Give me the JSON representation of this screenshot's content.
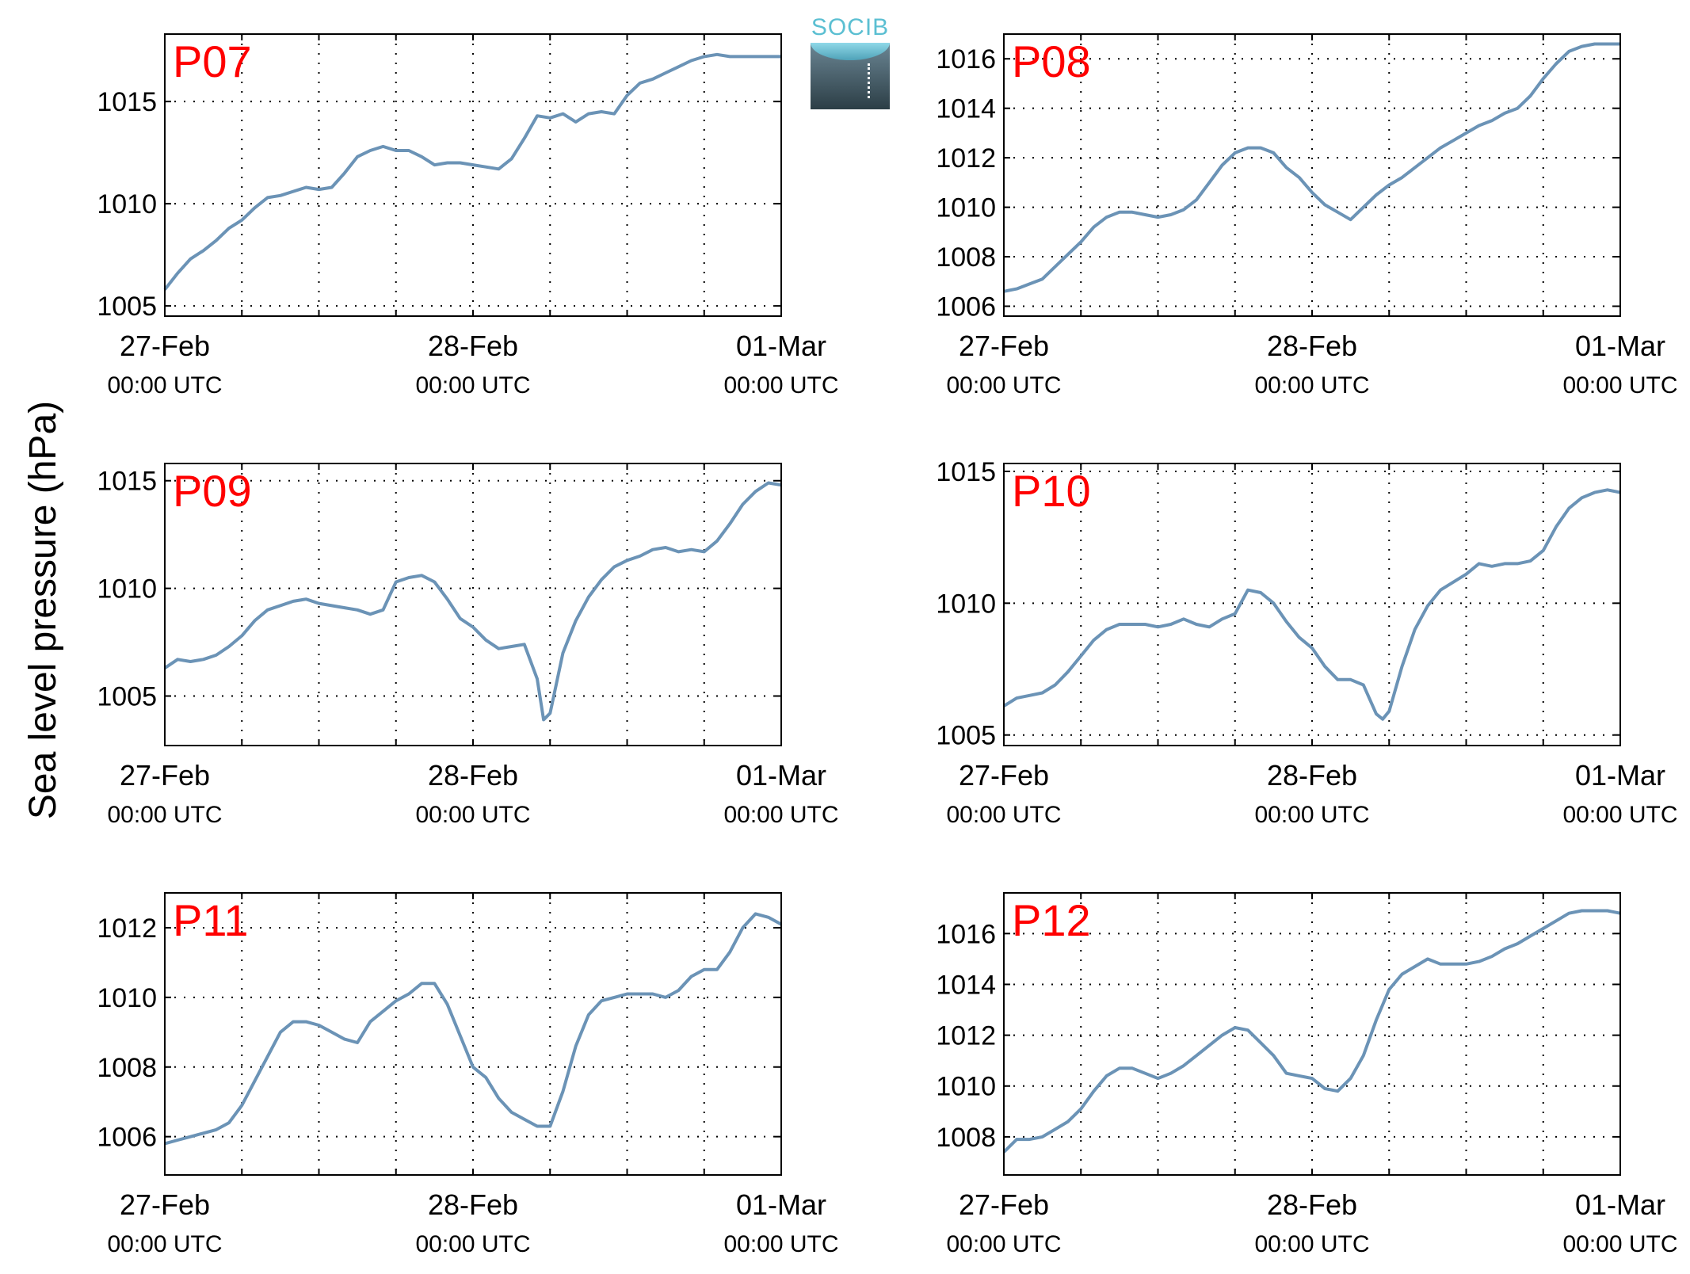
{
  "figure": {
    "ylabel": "Sea level pressure (hPa)",
    "logo_text": "SOCIB"
  },
  "colors": {
    "line": "#6b93b6",
    "panel_label": "#ff0000",
    "axis": "#000000",
    "grid": "#000000"
  },
  "chart_data": [
    {
      "type": "line",
      "panel_label": "P07",
      "ylim": [
        1004.5,
        1018.3
      ],
      "yticks": [
        "1005",
        "1010",
        "1015"
      ],
      "yticks_values": [
        1005,
        1010,
        1015
      ],
      "xlim": [
        0,
        48
      ],
      "xticks": [
        {
          "x": 0,
          "date": "27-Feb",
          "time": "00:00 UTC"
        },
        {
          "x": 24,
          "date": "28-Feb",
          "time": "00:00 UTC"
        },
        {
          "x": 48,
          "date": "01-Mar",
          "time": "00:00 UTC"
        }
      ],
      "xgrid": [
        6,
        12,
        18,
        30,
        36,
        42
      ],
      "grid": true,
      "series": [
        {
          "x": [
            0,
            1,
            2,
            3,
            4,
            5,
            6,
            7,
            8,
            9,
            10,
            11,
            12,
            13,
            14,
            15,
            16,
            17,
            18,
            19,
            20,
            21,
            22,
            23,
            24,
            25,
            26,
            27,
            28,
            29,
            30,
            31,
            32,
            33,
            34,
            35,
            36,
            37,
            38,
            39,
            40,
            41,
            42,
            43,
            44,
            45,
            46,
            47,
            48
          ],
          "y": [
            1005.8,
            1006.6,
            1007.3,
            1007.7,
            1008.2,
            1008.8,
            1009.2,
            1009.8,
            1010.3,
            1010.4,
            1010.6,
            1010.8,
            1010.7,
            1010.8,
            1011.5,
            1012.3,
            1012.6,
            1012.8,
            1012.6,
            1012.6,
            1012.3,
            1011.9,
            1012.0,
            1012.0,
            1011.9,
            1011.8,
            1011.7,
            1012.2,
            1013.2,
            1014.3,
            1014.2,
            1014.4,
            1014.0,
            1014.4,
            1014.5,
            1014.4,
            1015.3,
            1015.9,
            1016.1,
            1016.4,
            1016.7,
            1017.0,
            1017.2,
            1017.3,
            1017.2,
            1017.2,
            1017.2,
            1017.2,
            1017.2
          ]
        }
      ]
    },
    {
      "type": "line",
      "panel_label": "P08",
      "ylim": [
        1005.6,
        1017.0
      ],
      "yticks": [
        "1006",
        "1008",
        "1010",
        "1012",
        "1014",
        "1016"
      ],
      "yticks_values": [
        1006,
        1008,
        1010,
        1012,
        1014,
        1016
      ],
      "xlim": [
        0,
        48
      ],
      "xticks": [
        {
          "x": 0,
          "date": "27-Feb",
          "time": "00:00 UTC"
        },
        {
          "x": 24,
          "date": "28-Feb",
          "time": "00:00 UTC"
        },
        {
          "x": 48,
          "date": "01-Mar",
          "time": "00:00 UTC"
        }
      ],
      "xgrid": [
        6,
        12,
        18,
        30,
        36,
        42
      ],
      "grid": true,
      "series": [
        {
          "x": [
            0,
            1,
            2,
            3,
            4,
            5,
            6,
            7,
            8,
            9,
            10,
            11,
            12,
            13,
            14,
            15,
            16,
            17,
            18,
            19,
            20,
            21,
            22,
            23,
            24,
            25,
            26,
            27,
            28,
            29,
            30,
            31,
            32,
            33,
            34,
            35,
            36,
            37,
            38,
            39,
            40,
            41,
            42,
            43,
            44,
            45,
            46,
            47,
            48
          ],
          "y": [
            1006.6,
            1006.7,
            1006.9,
            1007.1,
            1007.6,
            1008.1,
            1008.6,
            1009.2,
            1009.6,
            1009.8,
            1009.8,
            1009.7,
            1009.6,
            1009.7,
            1009.9,
            1010.3,
            1011.0,
            1011.7,
            1012.2,
            1012.4,
            1012.4,
            1012.2,
            1011.6,
            1011.2,
            1010.6,
            1010.1,
            1009.8,
            1009.5,
            1010.0,
            1010.5,
            1010.9,
            1011.2,
            1011.6,
            1012.0,
            1012.4,
            1012.7,
            1013.0,
            1013.3,
            1013.5,
            1013.8,
            1014.0,
            1014.5,
            1015.2,
            1015.8,
            1016.3,
            1016.5,
            1016.6,
            1016.6,
            1016.6
          ]
        }
      ]
    },
    {
      "type": "line",
      "panel_label": "P09",
      "ylim": [
        1002.7,
        1015.8
      ],
      "yticks": [
        "1005",
        "1010",
        "1015"
      ],
      "yticks_values": [
        1005,
        1010,
        1015
      ],
      "xlim": [
        0,
        48
      ],
      "xticks": [
        {
          "x": 0,
          "date": "27-Feb",
          "time": "00:00 UTC"
        },
        {
          "x": 24,
          "date": "28-Feb",
          "time": "00:00 UTC"
        },
        {
          "x": 48,
          "date": "01-Mar",
          "time": "00:00 UTC"
        }
      ],
      "xgrid": [
        6,
        12,
        18,
        30,
        36,
        42
      ],
      "grid": true,
      "series": [
        {
          "x": [
            0,
            1,
            2,
            3,
            4,
            5,
            6,
            7,
            8,
            9,
            10,
            11,
            12,
            13,
            14,
            15,
            16,
            17,
            18,
            19,
            20,
            21,
            22,
            23,
            24,
            25,
            26,
            27,
            28,
            29,
            29.5,
            30,
            31,
            32,
            33,
            34,
            35,
            36,
            37,
            38,
            39,
            40,
            41,
            42,
            43,
            44,
            45,
            46,
            47,
            48
          ],
          "y": [
            1006.3,
            1006.7,
            1006.6,
            1006.7,
            1006.9,
            1007.3,
            1007.8,
            1008.5,
            1009.0,
            1009.2,
            1009.4,
            1009.5,
            1009.3,
            1009.2,
            1009.1,
            1009.0,
            1008.8,
            1009.0,
            1010.3,
            1010.5,
            1010.6,
            1010.3,
            1009.5,
            1008.6,
            1008.2,
            1007.6,
            1007.2,
            1007.3,
            1007.4,
            1005.8,
            1003.9,
            1004.2,
            1007.0,
            1008.5,
            1009.6,
            1010.4,
            1011.0,
            1011.3,
            1011.5,
            1011.8,
            1011.9,
            1011.7,
            1011.8,
            1011.7,
            1012.2,
            1013.0,
            1013.9,
            1014.5,
            1014.9,
            1014.8
          ]
        }
      ]
    },
    {
      "type": "line",
      "panel_label": "P10",
      "ylim": [
        1004.6,
        1015.3
      ],
      "yticks": [
        "1005",
        "1010",
        "1015"
      ],
      "yticks_values": [
        1005,
        1010,
        1015
      ],
      "xlim": [
        0,
        48
      ],
      "xticks": [
        {
          "x": 0,
          "date": "27-Feb",
          "time": "00:00 UTC"
        },
        {
          "x": 24,
          "date": "28-Feb",
          "time": "00:00 UTC"
        },
        {
          "x": 48,
          "date": "01-Mar",
          "time": "00:00 UTC"
        }
      ],
      "xgrid": [
        6,
        12,
        18,
        30,
        36,
        42
      ],
      "grid": true,
      "series": [
        {
          "x": [
            0,
            1,
            2,
            3,
            4,
            5,
            6,
            7,
            8,
            9,
            10,
            11,
            12,
            13,
            14,
            15,
            16,
            17,
            18,
            19,
            20,
            21,
            22,
            23,
            24,
            25,
            26,
            27,
            28,
            29,
            29.5,
            30,
            31,
            32,
            33,
            34,
            35,
            36,
            37,
            38,
            39,
            40,
            41,
            42,
            43,
            44,
            45,
            46,
            47,
            48
          ],
          "y": [
            1006.1,
            1006.4,
            1006.5,
            1006.6,
            1006.9,
            1007.4,
            1008.0,
            1008.6,
            1009.0,
            1009.2,
            1009.2,
            1009.2,
            1009.1,
            1009.2,
            1009.4,
            1009.2,
            1009.1,
            1009.4,
            1009.6,
            1010.5,
            1010.4,
            1010.0,
            1009.3,
            1008.7,
            1008.3,
            1007.6,
            1007.1,
            1007.1,
            1006.9,
            1005.8,
            1005.6,
            1005.9,
            1007.6,
            1009.0,
            1009.9,
            1010.5,
            1010.8,
            1011.1,
            1011.5,
            1011.4,
            1011.5,
            1011.5,
            1011.6,
            1012.0,
            1012.9,
            1013.6,
            1014.0,
            1014.2,
            1014.3,
            1014.2
          ]
        }
      ]
    },
    {
      "type": "line",
      "panel_label": "P11",
      "ylim": [
        1004.9,
        1013.0
      ],
      "yticks": [
        "1006",
        "1008",
        "1010",
        "1012"
      ],
      "yticks_values": [
        1006,
        1008,
        1010,
        1012
      ],
      "xlim": [
        0,
        48
      ],
      "xticks": [
        {
          "x": 0,
          "date": "27-Feb",
          "time": "00:00 UTC"
        },
        {
          "x": 24,
          "date": "28-Feb",
          "time": "00:00 UTC"
        },
        {
          "x": 48,
          "date": "01-Mar",
          "time": "00:00 UTC"
        }
      ],
      "xgrid": [
        6,
        12,
        18,
        30,
        36,
        42
      ],
      "grid": true,
      "series": [
        {
          "x": [
            0,
            1,
            2,
            3,
            4,
            5,
            6,
            7,
            8,
            9,
            10,
            11,
            12,
            13,
            14,
            15,
            16,
            17,
            18,
            19,
            20,
            21,
            22,
            23,
            24,
            25,
            26,
            27,
            28,
            29,
            30,
            31,
            32,
            33,
            34,
            35,
            36,
            37,
            38,
            39,
            40,
            41,
            42,
            43,
            44,
            45,
            46,
            47,
            48
          ],
          "y": [
            1005.8,
            1005.9,
            1006.0,
            1006.1,
            1006.2,
            1006.4,
            1006.9,
            1007.6,
            1008.3,
            1009.0,
            1009.3,
            1009.3,
            1009.2,
            1009.0,
            1008.8,
            1008.7,
            1009.3,
            1009.6,
            1009.9,
            1010.1,
            1010.4,
            1010.4,
            1009.8,
            1008.9,
            1008.0,
            1007.7,
            1007.1,
            1006.7,
            1006.5,
            1006.3,
            1006.3,
            1007.3,
            1008.6,
            1009.5,
            1009.9,
            1010.0,
            1010.1,
            1010.1,
            1010.1,
            1010.0,
            1010.2,
            1010.6,
            1010.8,
            1010.8,
            1011.3,
            1012.0,
            1012.4,
            1012.3,
            1012.1
          ]
        }
      ]
    },
    {
      "type": "line",
      "panel_label": "P12",
      "ylim": [
        1006.5,
        1017.6
      ],
      "yticks": [
        "1008",
        "1010",
        "1012",
        "1014",
        "1016"
      ],
      "yticks_values": [
        1008,
        1010,
        1012,
        1014,
        1016
      ],
      "xlim": [
        0,
        48
      ],
      "xticks": [
        {
          "x": 0,
          "date": "27-Feb",
          "time": "00:00 UTC"
        },
        {
          "x": 24,
          "date": "28-Feb",
          "time": "00:00 UTC"
        },
        {
          "x": 48,
          "date": "01-Mar",
          "time": "00:00 UTC"
        }
      ],
      "xgrid": [
        6,
        12,
        18,
        30,
        36,
        42
      ],
      "grid": true,
      "series": [
        {
          "x": [
            0,
            1,
            2,
            3,
            4,
            5,
            6,
            7,
            8,
            9,
            10,
            11,
            12,
            13,
            14,
            15,
            16,
            17,
            18,
            19,
            20,
            21,
            22,
            23,
            24,
            25,
            26,
            27,
            28,
            29,
            30,
            31,
            32,
            33,
            34,
            35,
            36,
            37,
            38,
            39,
            40,
            41,
            42,
            43,
            44,
            45,
            46,
            47,
            48
          ],
          "y": [
            1007.4,
            1007.9,
            1007.9,
            1008.0,
            1008.3,
            1008.6,
            1009.1,
            1009.8,
            1010.4,
            1010.7,
            1010.7,
            1010.5,
            1010.3,
            1010.5,
            1010.8,
            1011.2,
            1011.6,
            1012.0,
            1012.3,
            1012.2,
            1011.7,
            1011.2,
            1010.5,
            1010.4,
            1010.3,
            1009.9,
            1009.8,
            1010.3,
            1011.2,
            1012.6,
            1013.8,
            1014.4,
            1014.7,
            1015.0,
            1014.8,
            1014.8,
            1014.8,
            1014.9,
            1015.1,
            1015.4,
            1015.6,
            1015.9,
            1016.2,
            1016.5,
            1016.8,
            1016.9,
            1016.9,
            1016.9,
            1016.8
          ]
        }
      ]
    }
  ]
}
